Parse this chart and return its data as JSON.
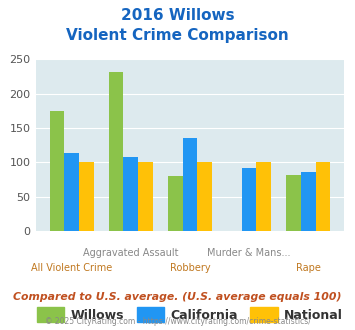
{
  "title_line1": "2016 Willows",
  "title_line2": "Violent Crime Comparison",
  "cat_labels_top": [
    "",
    "Aggravated Assault",
    "",
    "Murder & Mans...",
    ""
  ],
  "cat_labels_bot": [
    "All Violent Crime",
    "",
    "Robbery",
    "",
    "Rape"
  ],
  "willows": [
    175,
    232,
    80,
    0,
    81
  ],
  "california": [
    113,
    108,
    136,
    92,
    86
  ],
  "national": [
    100,
    100,
    100,
    100,
    100
  ],
  "willows_color": "#8bc34a",
  "california_color": "#2196f3",
  "national_color": "#ffc107",
  "bg_color": "#ddeaee",
  "title_color": "#1565c0",
  "ylim": [
    0,
    250
  ],
  "yticks": [
    0,
    50,
    100,
    150,
    200,
    250
  ],
  "footer_text": "Compared to U.S. average. (U.S. average equals 100)",
  "footer_color": "#c05020",
  "copyright_text": "© 2025 CityRating.com - https://www.cityrating.com/crime-statistics/",
  "copyright_color": "#888888",
  "legend_labels": [
    "Willows",
    "California",
    "National"
  ],
  "xlabel_top_color": "#888888",
  "xlabel_bot_color": "#c07820"
}
